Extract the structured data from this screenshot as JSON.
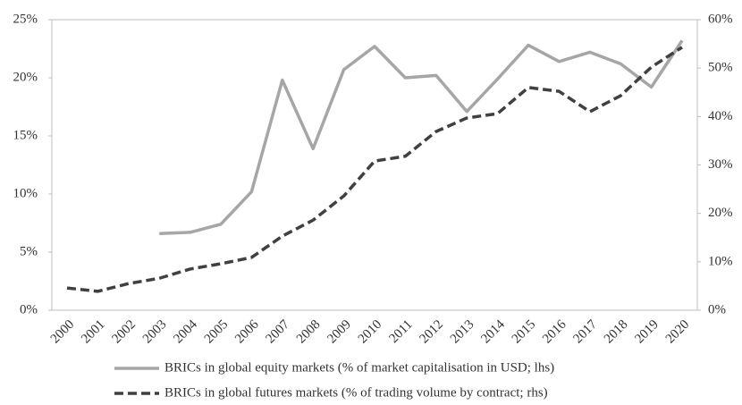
{
  "chart_data": {
    "type": "line",
    "categories": [
      "2000",
      "2001",
      "2002",
      "2003",
      "2004",
      "2005",
      "2006",
      "2007",
      "2008",
      "2009",
      "2010",
      "2011",
      "2012",
      "2013",
      "2014",
      "2015",
      "2016",
      "2017",
      "2018",
      "2019",
      "2020"
    ],
    "series": [
      {
        "name": "BRICs in global equity markets (% of market capitalisation in USD; lhs)",
        "color": "#a6a6a6",
        "style": "solid",
        "values": [
          null,
          null,
          null,
          6.6,
          6.7,
          7.4,
          10.2,
          19.8,
          13.9,
          20.7,
          22.7,
          20.0,
          20.2,
          17.1,
          19.9,
          22.8,
          21.4,
          22.2,
          21.2,
          19.2,
          23.2
        ]
      },
      {
        "name": "BRICs in global futures markets (% of trading volume by contract; rhs)",
        "color": "#404040",
        "style": "dashed",
        "axis": "y2",
        "values": [
          4.6,
          3.9,
          5.5,
          6.6,
          8.5,
          9.6,
          10.9,
          15.3,
          18.6,
          23.6,
          30.8,
          31.8,
          36.9,
          39.7,
          40.6,
          46.0,
          45.2,
          41.0,
          44.3,
          50.2,
          54.3
        ]
      }
    ],
    "ylim": [
      0,
      25
    ],
    "yticks": [
      {
        "value": 0,
        "label": "0%"
      },
      {
        "value": 5,
        "label": "5%"
      },
      {
        "value": 10,
        "label": "10%"
      },
      {
        "value": 15,
        "label": "15%"
      },
      {
        "value": 20,
        "label": "20%"
      },
      {
        "value": 25,
        "label": "25%"
      }
    ],
    "y2lim": [
      0,
      60
    ],
    "y2ticks": [
      {
        "value": 0,
        "label": "0%"
      },
      {
        "value": 10,
        "label": "10%"
      },
      {
        "value": 20,
        "label": "20%"
      },
      {
        "value": 30,
        "label": "30%"
      },
      {
        "value": 40,
        "label": "40%"
      },
      {
        "value": 50,
        "label": "50%"
      },
      {
        "value": 60,
        "label": "60%"
      }
    ],
    "grid": false,
    "legend": "bottom"
  }
}
